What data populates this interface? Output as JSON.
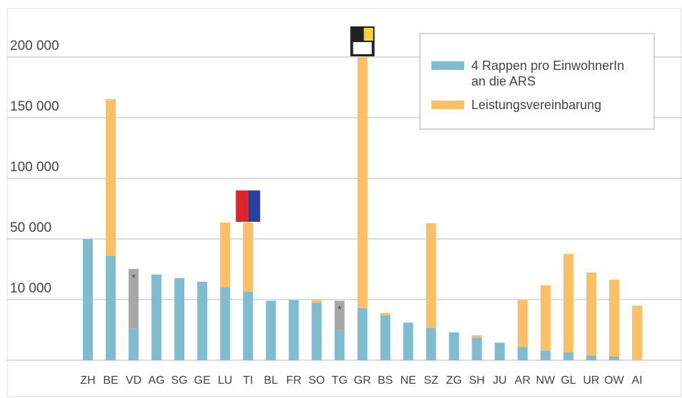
{
  "chart_data": {
    "type": "stacked_bar",
    "categories": [
      "ZH",
      "BE",
      "VD",
      "AG",
      "SG",
      "GE",
      "LU",
      "TI",
      "BL",
      "FR",
      "SO",
      "TG",
      "GR",
      "BS",
      "NE",
      "SZ",
      "ZG",
      "SH",
      "JU",
      "AR",
      "NW",
      "GL",
      "UR",
      "OW",
      "AI"
    ],
    "series": [
      {
        "name": "4 Rappen pro EinwohnerIn\nan die ARS",
        "color": "#80bccf",
        "values": [
          50000,
          38700,
          5200,
          26500,
          24100,
          21800,
          18000,
          15200,
          9800,
          9900,
          9500,
          4900,
          8600,
          7400,
          6200,
          5300,
          4600,
          3700,
          2900,
          2200,
          1600,
          1300,
          800,
          600,
          0
        ]
      },
      {
        "name": "Leistungsvereinbarung",
        "color": "#fbbf66",
        "values": [
          null,
          126600,
          null,
          null,
          null,
          null,
          45500,
          48300,
          null,
          null,
          500,
          null,
          191400,
          400,
          null,
          57600,
          null,
          400,
          null,
          7700,
          17800,
          38800,
          27100,
          22600,
          9000
        ]
      },
      {
        "color": "#a7a7a7",
        "values": [
          null,
          null,
          25000,
          null,
          null,
          null,
          null,
          null,
          null,
          null,
          null,
          4900,
          null,
          null,
          null,
          null,
          null,
          null,
          null,
          null,
          null,
          null,
          null,
          null,
          null
        ]
      }
    ],
    "annotations": [
      {
        "text": "*",
        "category": "VD"
      },
      {
        "text": "*",
        "category": "TG"
      }
    ],
    "ylim": [
      0,
      240000
    ],
    "yticks": [
      {
        "value": 200000,
        "label": "200 000"
      },
      {
        "value": 150000,
        "label": "150 000"
      },
      {
        "value": 100000,
        "label": "100 000"
      },
      {
        "value": 50000,
        "label": "50 000"
      },
      {
        "value": 10000,
        "label": "10 000"
      }
    ],
    "grid": true,
    "legend": "top-right"
  }
}
